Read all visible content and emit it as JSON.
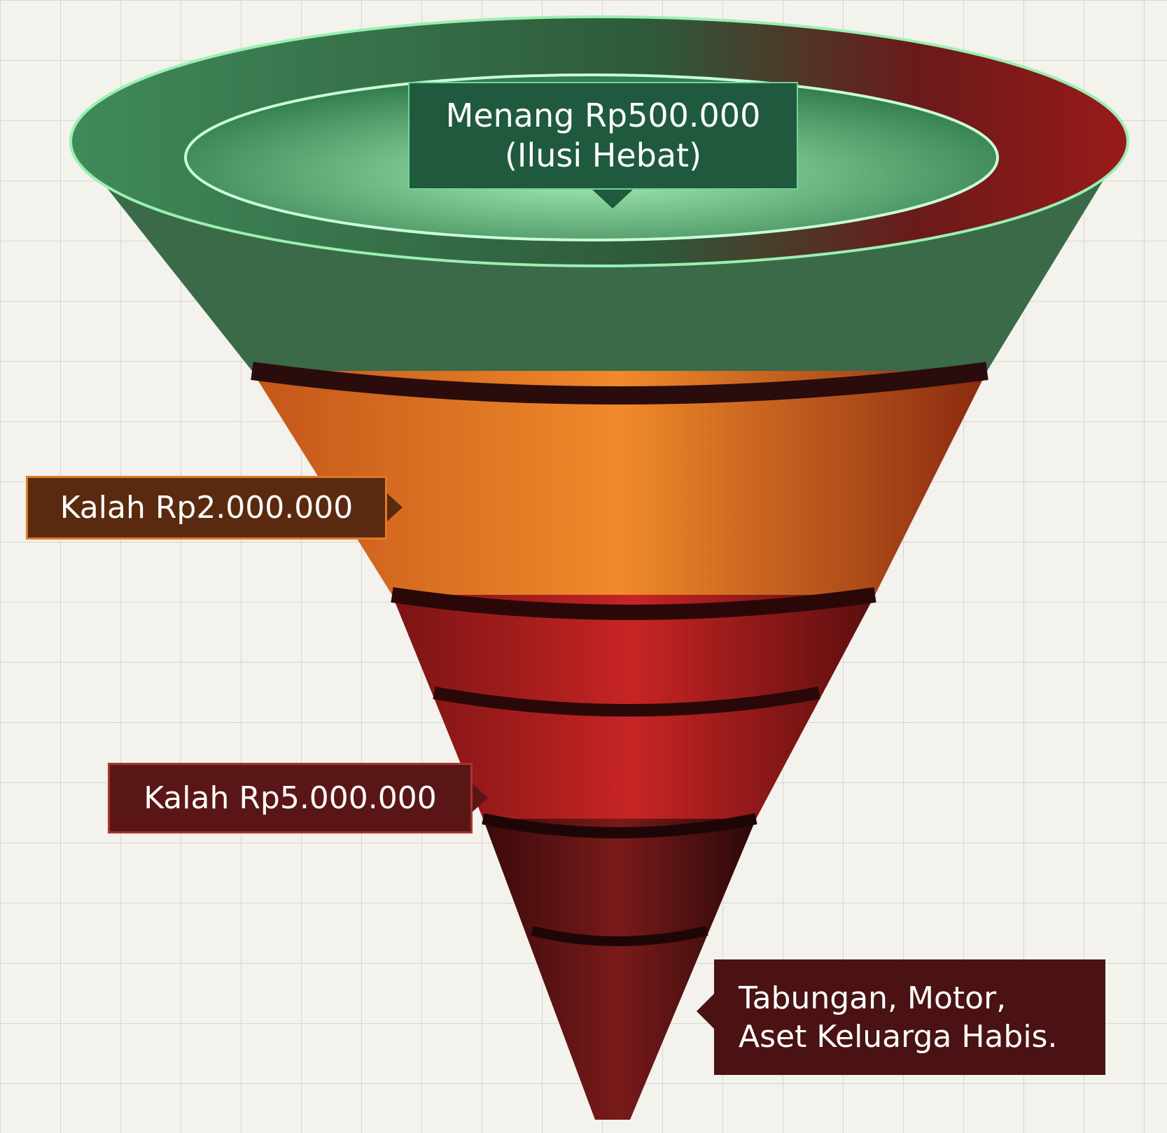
{
  "callouts": [
    {
      "lines": [
        "Menang Rp500.000",
        "(Ilusi Hebat)"
      ]
    },
    {
      "lines": [
        "Kalah Rp2.000.000"
      ]
    },
    {
      "lines": [
        "Kalah Rp5.000.000"
      ]
    },
    {
      "lines": [
        "Tabungan, Motor,",
        "Aset Keluarga Habis."
      ]
    }
  ]
}
